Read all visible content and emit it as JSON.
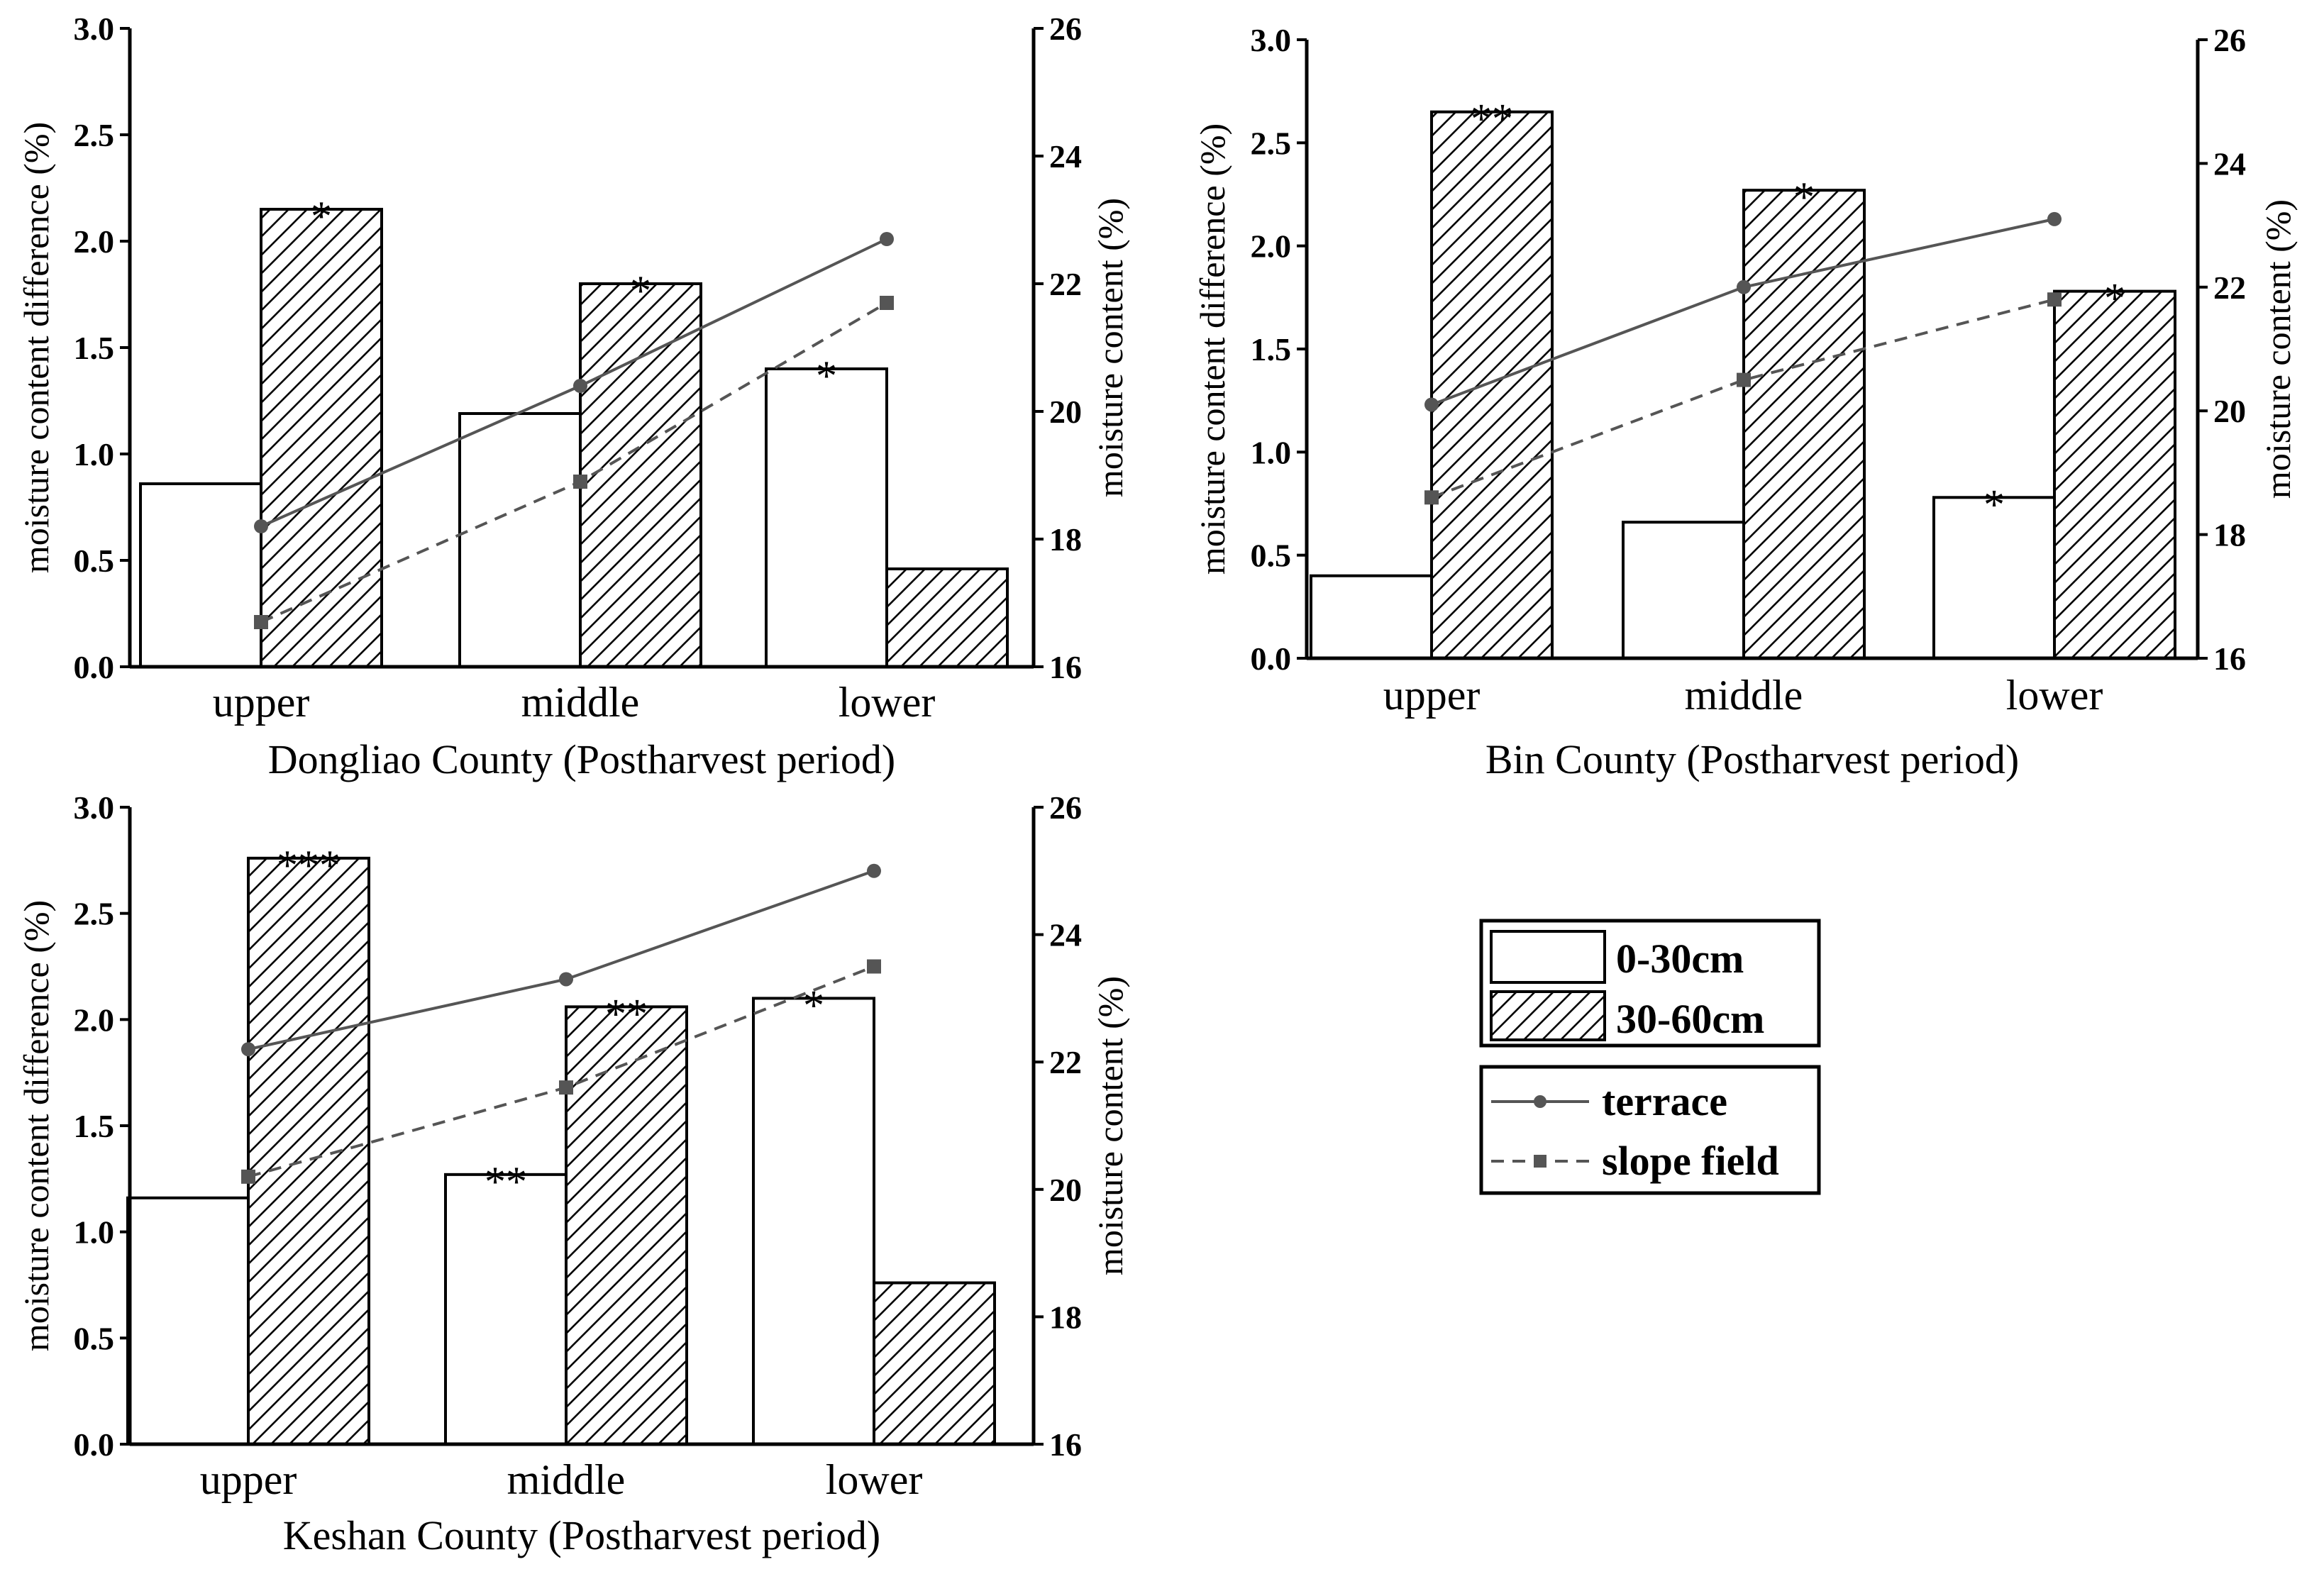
{
  "legend": {
    "bar_items": [
      "0-30cm",
      "30-60cm"
    ],
    "line_items": [
      "terrace",
      "slope field"
    ]
  },
  "chart_data": [
    {
      "type": "bar",
      "title": "Dongliao County (Postharvest period)",
      "categories": [
        "upper",
        "middle",
        "lower"
      ],
      "ylabel": "moisture content difference (%)",
      "y2label": "moisture content (%)",
      "ylim": [
        0,
        3.0
      ],
      "y2lim": [
        16,
        26
      ],
      "yticks": [
        "0.0",
        "0.5",
        "1.0",
        "1.5",
        "2.0",
        "2.5",
        "3.0"
      ],
      "y2ticks": [
        "16",
        "18",
        "20",
        "22",
        "24",
        "26"
      ],
      "series": [
        {
          "name": "0-30cm",
          "type": "bar",
          "values": [
            0.86,
            1.19,
            1.4
          ],
          "significance": [
            "",
            "",
            "*"
          ]
        },
        {
          "name": "30-60cm",
          "type": "bar",
          "values": [
            2.15,
            1.8,
            0.46
          ],
          "significance": [
            "*",
            "*",
            ""
          ]
        },
        {
          "name": "terrace",
          "type": "line",
          "axis": "y2",
          "values": [
            18.2,
            20.4,
            22.7
          ]
        },
        {
          "name": "slope field",
          "type": "line",
          "axis": "y2",
          "values": [
            16.7,
            18.9,
            21.7
          ]
        }
      ]
    },
    {
      "type": "bar",
      "title": "Bin County (Postharvest period)",
      "categories": [
        "upper",
        "middle",
        "lower"
      ],
      "ylabel": "moisture content difference (%)",
      "y2label": "moisture content (%)",
      "ylim": [
        0,
        3.0
      ],
      "y2lim": [
        16,
        26
      ],
      "yticks": [
        "0.0",
        "0.5",
        "1.0",
        "1.5",
        "2.0",
        "2.5",
        "3.0"
      ],
      "y2ticks": [
        "16",
        "18",
        "20",
        "22",
        "24",
        "26"
      ],
      "series": [
        {
          "name": "0-30cm",
          "type": "bar",
          "values": [
            0.4,
            0.66,
            0.78
          ],
          "significance": [
            "",
            "",
            "*"
          ]
        },
        {
          "name": "30-60cm",
          "type": "bar",
          "values": [
            2.65,
            2.27,
            1.78
          ],
          "significance": [
            "**",
            "*",
            "*"
          ]
        },
        {
          "name": "terrace",
          "type": "line",
          "axis": "y2",
          "values": [
            20.1,
            22.0,
            23.1
          ]
        },
        {
          "name": "slope field",
          "type": "line",
          "axis": "y2",
          "values": [
            18.6,
            20.5,
            21.8
          ]
        }
      ]
    },
    {
      "type": "bar",
      "title": "Keshan County (Postharvest period)",
      "categories": [
        "upper",
        "middle",
        "lower"
      ],
      "ylabel": "moisture content difference (%)",
      "y2label": "moisture content (%)",
      "ylim": [
        0,
        3.0
      ],
      "y2lim": [
        16,
        26
      ],
      "yticks": [
        "0.0",
        "0.5",
        "1.0",
        "1.5",
        "2.0",
        "2.5",
        "3.0"
      ],
      "y2ticks": [
        "16",
        "18",
        "20",
        "22",
        "24",
        "26"
      ],
      "series": [
        {
          "name": "0-30cm",
          "type": "bar",
          "values": [
            1.16,
            1.27,
            2.1
          ],
          "significance": [
            "",
            "**",
            "*"
          ]
        },
        {
          "name": "30-60cm",
          "type": "bar",
          "values": [
            2.76,
            2.06,
            0.76
          ],
          "significance": [
            "***",
            "**",
            ""
          ]
        },
        {
          "name": "terrace",
          "type": "line",
          "axis": "y2",
          "values": [
            22.2,
            23.3,
            25.0
          ]
        },
        {
          "name": "slope field",
          "type": "line",
          "axis": "y2",
          "values": [
            20.2,
            21.6,
            23.5
          ]
        }
      ]
    }
  ]
}
